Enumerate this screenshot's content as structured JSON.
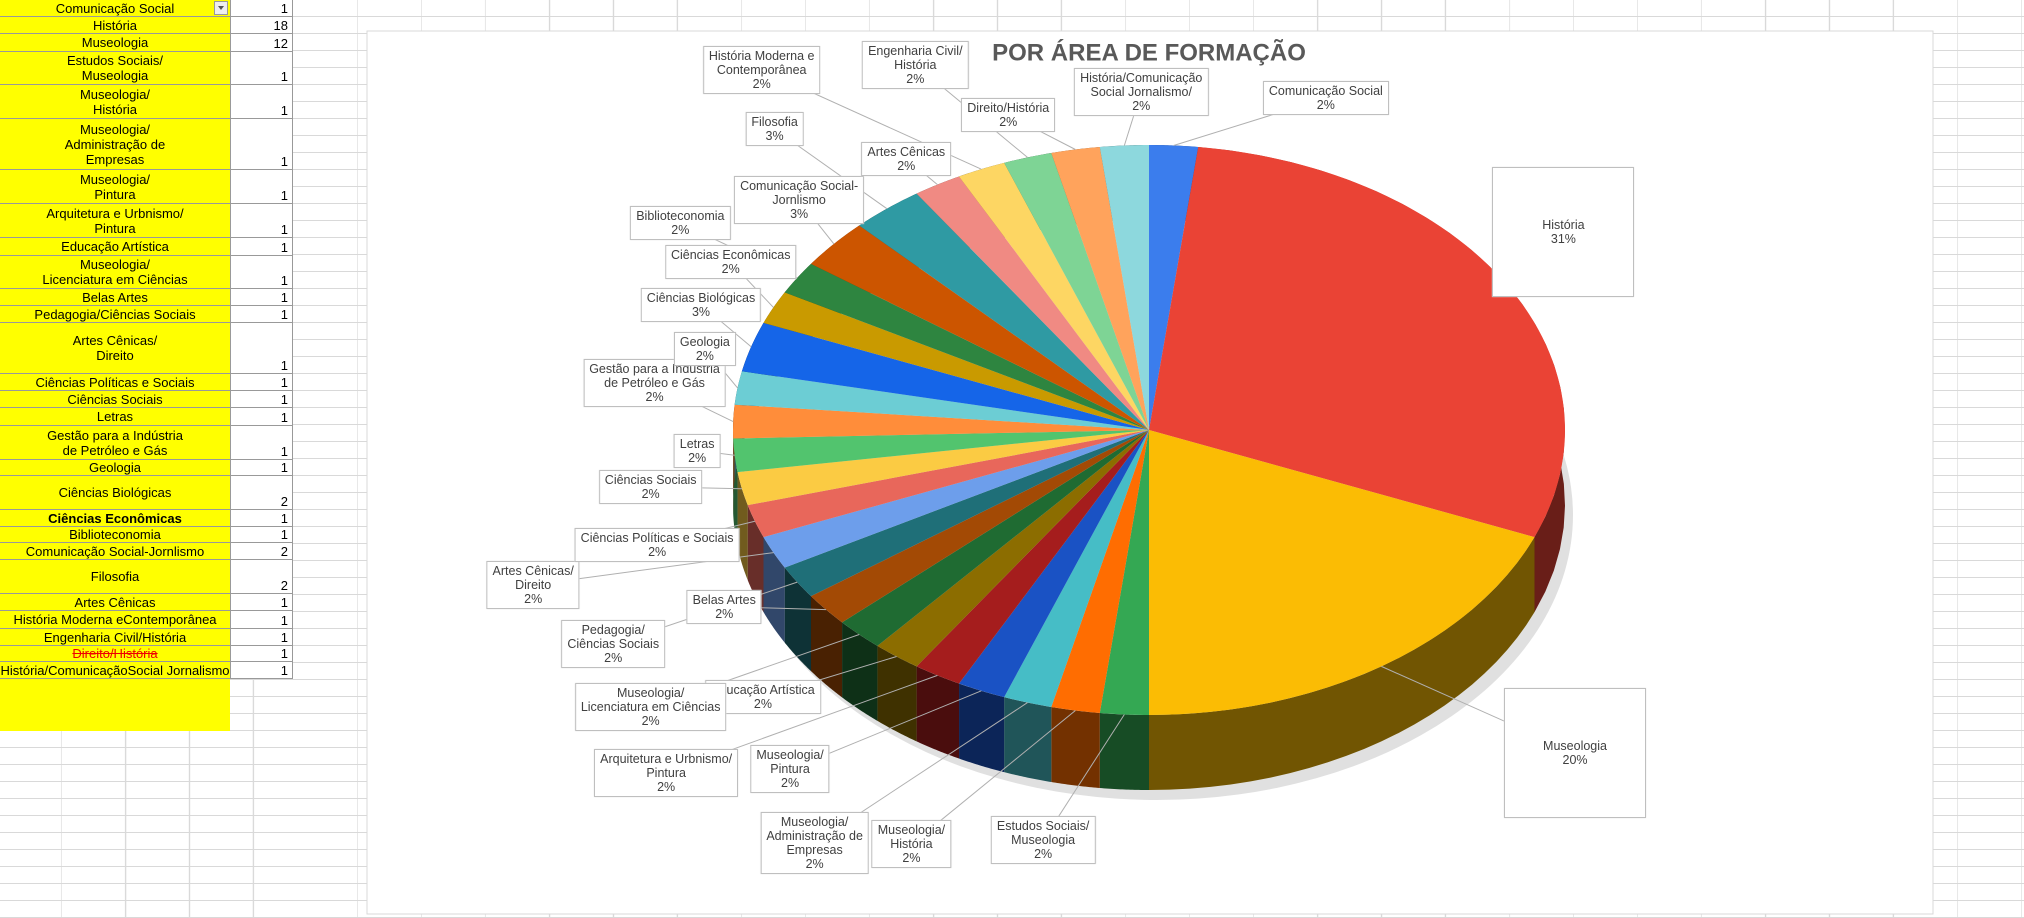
{
  "sheet": {
    "rows": [
      [
        "Comunicação Social",
        1
      ],
      [
        "História",
        18
      ],
      [
        "Museologia",
        12
      ],
      [
        "Estudos Sociais/\nMuseologia",
        1
      ],
      [
        "Museologia/\nHistória",
        1
      ],
      [
        "Museologia/\nAdministração de\nEmpresas",
        1
      ],
      [
        "Museologia/\nPintura",
        1
      ],
      [
        "Arquitetura e Urbnismo/\nPintura",
        1
      ],
      [
        "Educação Artística",
        1
      ],
      [
        "Museologia/\nLicenciatura em Ciências",
        1
      ],
      [
        "Belas Artes",
        1
      ],
      [
        "Pedagogia/Ciências Sociais",
        1
      ],
      [
        "Artes Cênicas/\nDireito",
        1
      ],
      [
        "Ciências Políticas e Sociais",
        1
      ],
      [
        "Ciências Sociais",
        1
      ],
      [
        "Letras",
        1
      ],
      [
        "Gestão para a Indústria\nde Petróleo e Gás",
        1
      ],
      [
        "Geologia",
        1
      ],
      [
        "Ciências Biológicas",
        2
      ],
      [
        "Ciências Econômicas",
        1
      ],
      [
        "Biblioteconomia",
        1
      ],
      [
        "Comunicação Social-Jornlismo",
        2
      ],
      [
        "Filosofia",
        2
      ],
      [
        "Artes Cênicas",
        1
      ],
      [
        "História Moderna eContemporânea",
        1
      ],
      [
        "Engenharia Civil/História",
        1
      ],
      [
        "Direito/História",
        1
      ],
      [
        "História/ComunicaçãoSocial Jornalismo",
        1
      ]
    ]
  },
  "chart_data": {
    "type": "pie",
    "title": "POR ÁREA DE FORMAÇÃO",
    "categories": [
      "Comunicação Social",
      "História",
      "Museologia",
      "Estudos Sociais/\nMuseologia",
      "Museologia/\nHistória",
      "Museologia/\nAdministração de\nEmpresas",
      "Museologia/\nPintura",
      "Arquitetura e Urbnismo/\nPintura",
      "Educação Artística",
      "Museologia/\nLicenciatura em Ciências",
      "Belas Artes",
      "Pedagogia/\nCiências Sociais",
      "Artes Cênicas/\nDireito",
      "Ciências Políticas e Sociais",
      "Ciências Sociais",
      "Letras",
      "Gestão para a Indústria\nde Petróleo e Gás",
      "Geologia",
      "Ciências Biológicas",
      "Ciências Econômicas",
      "Biblioteconomia",
      "Comunicação Social-\nJornlismo",
      "Filosofia",
      "Artes Cênicas",
      "História Moderna e\nContemporânea",
      "Engenharia Civil/\nHistória",
      "Direito/História",
      "História/Comunicação\nSocial Jornalismo/"
    ],
    "values": [
      2,
      31,
      20,
      2,
      2,
      2,
      2,
      2,
      2,
      2,
      2,
      2,
      2,
      2,
      2,
      2,
      2,
      2,
      3,
      2,
      2,
      3,
      3,
      2,
      2,
      2,
      2,
      2
    ],
    "value_labels": [
      "2%",
      "31%",
      "20%",
      "2%",
      "2%",
      "2%",
      "2%",
      "2%",
      "2%",
      "2%",
      "2%",
      "2%",
      "2%",
      "2%",
      "2%",
      "2%",
      "2%",
      "2%",
      "3%",
      "2%",
      "2%",
      "3%",
      "3%",
      "2%",
      "2%",
      "2%",
      "2%",
      "2%"
    ],
    "colors": [
      "#3b7ded",
      "#ea4335",
      "#fbbc04",
      "#34a853",
      "#ff6d01",
      "#46bdc6",
      "#1a52c4",
      "#a51d1d",
      "#8c6d00",
      "#1f6b32",
      "#a34a05",
      "#1f6f78",
      "#6d9eeb",
      "#e8675b",
      "#fbcb43",
      "#52c46e",
      "#ff8d3a",
      "#6ccdd4",
      "#1565e8",
      "#c99a00",
      "#2e8540",
      "#cc5500",
      "#2f9aa3",
      "#f08a83",
      "#fdd663",
      "#7ed495",
      "#ffa35c",
      "#8dd8dd"
    ]
  }
}
